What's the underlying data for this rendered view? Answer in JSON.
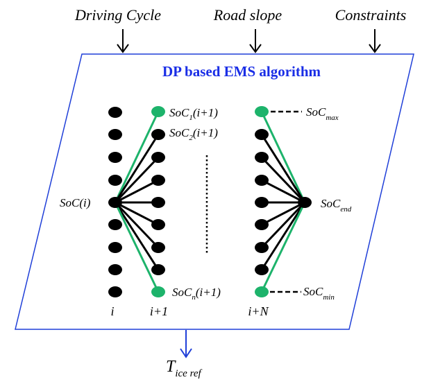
{
  "inputs": {
    "driving_cycle": "Driving Cycle",
    "road_slope": "Road slope",
    "constraints": "Constraints"
  },
  "box_title": "DP based EMS algorithm",
  "labels": {
    "soc_i": "SoC(i)",
    "soc_1": {
      "base": "SoC",
      "sub": "1",
      "tail": "(i+1)"
    },
    "soc_2": {
      "base": "SoC",
      "sub": "2",
      "tail": "(i+1)"
    },
    "soc_n": {
      "base": "SoC",
      "sub": "n",
      "tail": "(i+1)"
    },
    "soc_max": {
      "base": "SoC",
      "sub": "max"
    },
    "soc_end": {
      "base": "SoC",
      "sub": "end"
    },
    "soc_min": {
      "base": "SoC",
      "sub": "min"
    }
  },
  "stage_labels": {
    "i": "i",
    "i_plus_1": "i+1",
    "i_plus_n": "i+N"
  },
  "output": {
    "base": "T",
    "sub": "ice ref"
  },
  "colors": {
    "node": "#000000",
    "green": "#1db36b",
    "title": "#1a2ee6",
    "box": "#1f3fd8",
    "output_arrow": "#1f3fd8"
  },
  "node_counts": {
    "col_i": 9,
    "col_i1": 8,
    "col_iN": 8
  }
}
